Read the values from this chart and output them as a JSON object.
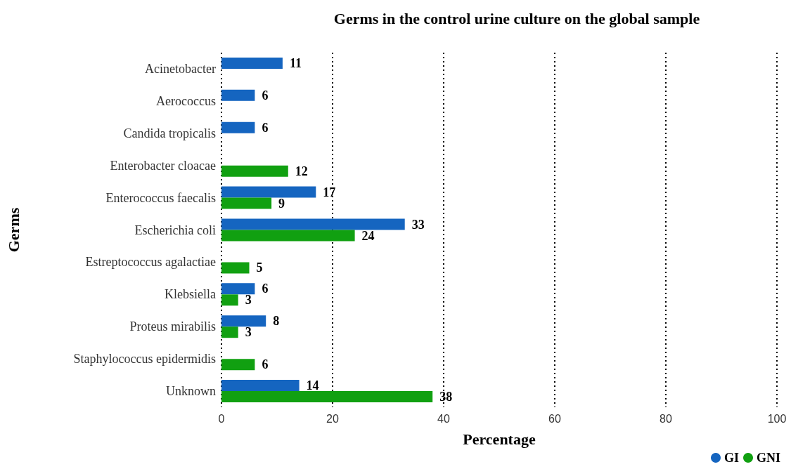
{
  "chart_data": {
    "type": "bar",
    "orientation": "horizontal",
    "title": "Germs in the control urine culture on the global sample",
    "xlabel": "Percentage",
    "ylabel": "Germs",
    "categories": [
      "Acinetobacter",
      "Aerococcus",
      "Candida tropicalis",
      "Enterobacter cloacae",
      "Enterococcus faecalis",
      "Escherichia coli",
      "Estreptococcus agalactiae",
      "Klebsiella",
      "Proteus mirabilis",
      "Staphylococcus epidermidis",
      "Unknown"
    ],
    "series": [
      {
        "name": "GI",
        "color": "#1565c0",
        "values": [
          11,
          6,
          6,
          null,
          17,
          33,
          null,
          6,
          8,
          null,
          14
        ]
      },
      {
        "name": "GNI",
        "color": "#11a011",
        "values": [
          null,
          null,
          null,
          12,
          9,
          24,
          5,
          3,
          3,
          6,
          38
        ]
      }
    ],
    "xlim": [
      0,
      100
    ],
    "xticks": [
      0,
      20,
      40,
      60,
      80,
      100
    ],
    "grid": "x",
    "legend": "bottom right",
    "data_labels": true
  }
}
